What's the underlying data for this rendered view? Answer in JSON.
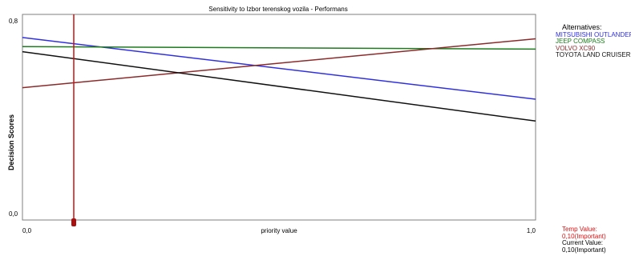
{
  "chart_data": {
    "type": "line",
    "title": "Sensitivity to Izbor terenskog vozila - Performans",
    "xlabel": "priority value",
    "ylabel": "Decision Scores",
    "x_ticks": [
      "0,0",
      "1,0"
    ],
    "y_ticks": [
      "0,0",
      "0,8"
    ],
    "xlim": [
      0,
      1
    ],
    "ylim": [
      0,
      0.8
    ],
    "grid": false,
    "legend_position": "right",
    "series": [
      {
        "name": "MITSUBISHI OUTLANDER",
        "color": "#3030e0",
        "x": [
          0,
          1
        ],
        "y": [
          0.71,
          0.47
        ]
      },
      {
        "name": "JEEP COMPASS",
        "color": "#1e7a1e",
        "x": [
          0,
          1
        ],
        "y": [
          0.675,
          0.665
        ]
      },
      {
        "name": "VOLVO XC90",
        "color": "#8b2a2a",
        "x": [
          0,
          1
        ],
        "y": [
          0.515,
          0.705
        ]
      },
      {
        "name": "TOYOTA LAND CRUISER",
        "color": "#101010",
        "x": [
          0,
          1
        ],
        "y": [
          0.655,
          0.385
        ]
      }
    ],
    "marker": {
      "x": 0.1,
      "color": "#cc1111"
    }
  },
  "legend": {
    "title": "Alternatives:"
  },
  "values": {
    "temp_label": "Temp Value:",
    "temp_value": "0,10(Important)",
    "current_label": "Current Value:",
    "current_value": "0,10(Important)",
    "temp_color": "#dd1111"
  }
}
